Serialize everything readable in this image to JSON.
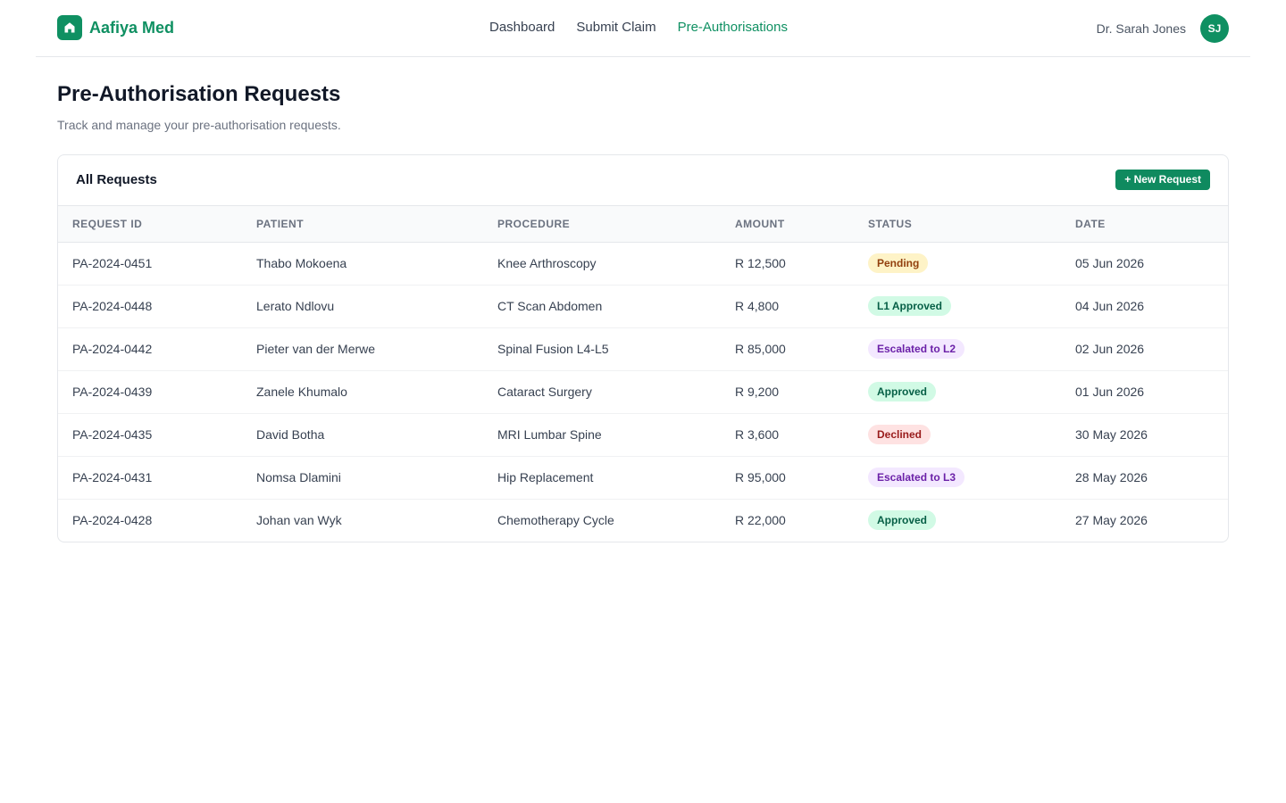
{
  "brand": {
    "name": "Aafiya Med",
    "icon": "home-icon",
    "color": "#0f9062"
  },
  "nav": [
    {
      "label": "Dashboard",
      "active": false
    },
    {
      "label": "Submit Claim",
      "active": false
    },
    {
      "label": "Pre-Authorisations",
      "active": true
    }
  ],
  "user": {
    "name": "Dr. Sarah Jones",
    "initials": "SJ"
  },
  "page": {
    "title": "Pre-Authorisation Requests",
    "subtitle": "Track and manage your pre-authorisation requests."
  },
  "card": {
    "title": "All Requests",
    "new_button": "+ New Request"
  },
  "table": {
    "columns": [
      "Request ID",
      "Patient",
      "Procedure",
      "Amount",
      "Status",
      "Date"
    ],
    "rows": [
      {
        "id": "PA-2024-0451",
        "patient": "Thabo Mokoena",
        "procedure": "Knee Arthroscopy",
        "amount": "R 12,500",
        "status": "Pending",
        "status_type": "pending",
        "date": "05 Jun 2026"
      },
      {
        "id": "PA-2024-0448",
        "patient": "Lerato Ndlovu",
        "procedure": "CT Scan Abdomen",
        "amount": "R 4,800",
        "status": "L1 Approved",
        "status_type": "approved",
        "date": "04 Jun 2026"
      },
      {
        "id": "PA-2024-0442",
        "patient": "Pieter van der Merwe",
        "procedure": "Spinal Fusion L4-L5",
        "amount": "R 85,000",
        "status": "Escalated to L2",
        "status_type": "escalated",
        "date": "02 Jun 2026"
      },
      {
        "id": "PA-2024-0439",
        "patient": "Zanele Khumalo",
        "procedure": "Cataract Surgery",
        "amount": "R 9,200",
        "status": "Approved",
        "status_type": "approved",
        "date": "01 Jun 2026"
      },
      {
        "id": "PA-2024-0435",
        "patient": "David Botha",
        "procedure": "MRI Lumbar Spine",
        "amount": "R 3,600",
        "status": "Declined",
        "status_type": "declined",
        "date": "30 May 2026"
      },
      {
        "id": "PA-2024-0431",
        "patient": "Nomsa Dlamini",
        "procedure": "Hip Replacement",
        "amount": "R 95,000",
        "status": "Escalated to L3",
        "status_type": "escalated",
        "date": "28 May 2026"
      },
      {
        "id": "PA-2024-0428",
        "patient": "Johan van Wyk",
        "procedure": "Chemotherapy Cycle",
        "amount": "R 22,000",
        "status": "Approved",
        "status_type": "approved",
        "date": "27 May 2026"
      }
    ]
  },
  "status_colors": {
    "pending": {
      "bg": "#fef3c7",
      "fg": "#92400e"
    },
    "approved": {
      "bg": "#d1fae5",
      "fg": "#065f46"
    },
    "escalated": {
      "bg": "#f3e8ff",
      "fg": "#6b21a8"
    },
    "declined": {
      "bg": "#fee2e2",
      "fg": "#991b1b"
    }
  }
}
